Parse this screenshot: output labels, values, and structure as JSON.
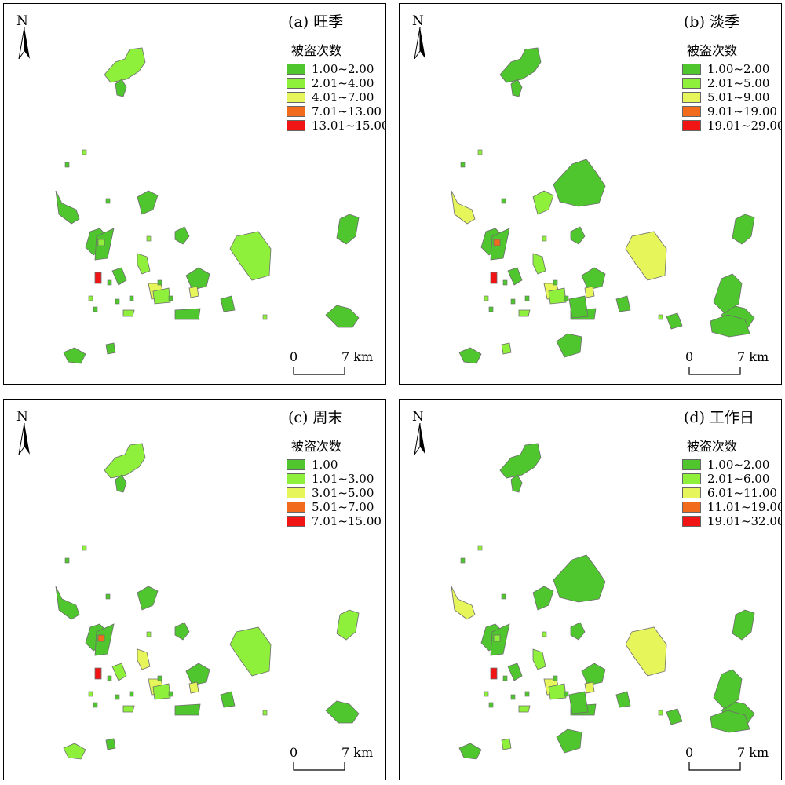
{
  "north_label": "N",
  "legend_title": "被盗次数",
  "scale": {
    "start": "0",
    "end": "7 km"
  },
  "colors": [
    "#4fc62d",
    "#8ef03a",
    "#e6f55a",
    "#f26a1b",
    "#f01414"
  ],
  "panels": [
    {
      "title": "(a) 旺季",
      "classes": [
        "1.00~2.00",
        "2.01~4.00",
        "4.01~7.00",
        "7.01~13.00",
        "13.01~15.00"
      ]
    },
    {
      "title": "(b) 淡季",
      "classes": [
        "1.00~2.00",
        "2.01~5.00",
        "5.01~9.00",
        "9.01~19.00",
        "19.01~29.00"
      ]
    },
    {
      "title": "(c) 周末",
      "classes": [
        "1.00",
        "1.01~3.00",
        "3.01~5.00",
        "5.01~7.00",
        "7.01~15.00"
      ]
    },
    {
      "title": "(d) 工作日",
      "classes": [
        "1.00~2.00",
        "2.01~6.00",
        "6.01~11.00",
        "11.01~19.00",
        "19.01~32.00"
      ]
    }
  ]
}
